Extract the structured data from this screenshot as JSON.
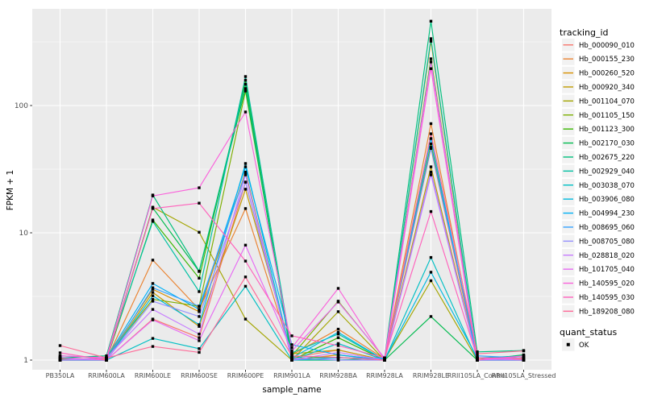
{
  "chart_data": {
    "type": "line",
    "xlabel": "sample_name",
    "ylabel": "FPKM + 1",
    "y_scale": "log10",
    "y_ticks": [
      "1",
      "10",
      "100"
    ],
    "y_tick_values": [
      1,
      10,
      100
    ],
    "y_minor_values": [
      3.162,
      31.62,
      316.2
    ],
    "categories": [
      "PB350LA",
      "RRIM600LA",
      "RRIM600LE",
      "RRIM600SE",
      "RRIM600PE",
      "RRIM901LA",
      "RRIM928BA",
      "RRIM928LA",
      "RRIM928LE",
      "RRII105LA_Control",
      "RRII105LA_Stressed"
    ],
    "panel_bg": "#EBEBEB",
    "grid_color": "#FFFFFF",
    "tick_label_color": "#4D4D4D",
    "marker_color": "#000000",
    "series": [
      {
        "name": "Hb_000090_010",
        "color": "#F8766D",
        "values": [
          1.05,
          1.0,
          2.1,
          1.5,
          25.0,
          1.05,
          1.2,
          1.0,
          46.0,
          1.0,
          1.02
        ]
      },
      {
        "name": "Hb_000155_230",
        "color": "#EA8331",
        "values": [
          1.02,
          1.0,
          6.1,
          2.5,
          15.5,
          1.1,
          1.75,
          1.02,
          72.0,
          1.03,
          1.0
        ]
      },
      {
        "name": "Hb_000260_520",
        "color": "#D89000",
        "values": [
          1.0,
          1.03,
          3.6,
          2.4,
          30.0,
          1.0,
          1.1,
          1.0,
          320.0,
          1.0,
          1.04
        ]
      },
      {
        "name": "Hb_000920_340",
        "color": "#C09B00",
        "values": [
          1.04,
          1.0,
          3.4,
          1.84,
          22.0,
          1.12,
          1.2,
          1.0,
          33.0,
          1.0,
          1.08
        ]
      },
      {
        "name": "Hb_001104_070",
        "color": "#A3A500",
        "values": [
          1.0,
          1.0,
          15.9,
          10.1,
          2.1,
          1.0,
          2.4,
          1.0,
          4.2,
          1.0,
          1.0
        ]
      },
      {
        "name": "Hb_001105_150",
        "color": "#7CAE00",
        "values": [
          1.0,
          1.04,
          3.0,
          2.65,
          130.0,
          1.08,
          2.9,
          1.03,
          50.0,
          1.04,
          1.0
        ]
      },
      {
        "name": "Hb_001123_300",
        "color": "#39B600",
        "values": [
          1.03,
          1.0,
          12.6,
          4.4,
          158.0,
          1.0,
          1.5,
          1.0,
          233.0,
          1.0,
          1.05
        ]
      },
      {
        "name": "Hb_002170_030",
        "color": "#00BB4E",
        "values": [
          1.0,
          1.0,
          15.7,
          4.97,
          136.0,
          1.04,
          1.05,
          1.0,
          2.2,
          1.0,
          1.1
        ]
      },
      {
        "name": "Hb_002675_220",
        "color": "#00BF7D",
        "values": [
          1.04,
          1.08,
          19.8,
          5.0,
          147.0,
          1.0,
          1.0,
          1.04,
          460.0,
          1.16,
          1.19
        ]
      },
      {
        "name": "Hb_002929_040",
        "color": "#00C1A3",
        "values": [
          1.0,
          1.04,
          12.3,
          3.45,
          169.0,
          1.14,
          1.6,
          1.0,
          335.0,
          1.04,
          1.08
        ]
      },
      {
        "name": "Hb_003038_070",
        "color": "#00BFC4",
        "values": [
          1.04,
          1.0,
          1.48,
          1.23,
          3.8,
          1.0,
          1.35,
          1.0,
          6.4,
          1.0,
          1.0
        ]
      },
      {
        "name": "Hb_003906_080",
        "color": "#00BAE0",
        "values": [
          1.0,
          1.0,
          3.2,
          1.9,
          35.0,
          1.04,
          1.65,
          1.0,
          4.9,
          1.04,
          1.04
        ]
      },
      {
        "name": "Hb_004994_230",
        "color": "#00B0F6",
        "values": [
          1.08,
          1.04,
          4.0,
          2.5,
          33.0,
          1.32,
          1.1,
          1.0,
          55.0,
          1.0,
          1.0
        ]
      },
      {
        "name": "Hb_008695_060",
        "color": "#35A2FF",
        "values": [
          1.04,
          1.0,
          3.7,
          2.65,
          29.0,
          1.0,
          1.04,
          1.04,
          47.0,
          1.08,
          1.04
        ]
      },
      {
        "name": "Hb_008705_080",
        "color": "#9590FF",
        "values": [
          1.0,
          1.0,
          2.9,
          2.2,
          25.0,
          1.04,
          1.0,
          1.0,
          30.0,
          1.0,
          1.0
        ]
      },
      {
        "name": "Hb_028818_020",
        "color": "#C77CFF",
        "values": [
          1.0,
          1.04,
          2.5,
          1.6,
          28.5,
          1.0,
          1.15,
          1.0,
          28.5,
          1.0,
          1.04
        ]
      },
      {
        "name": "Hb_101705_040",
        "color": "#E76BF3",
        "values": [
          1.04,
          1.0,
          2.07,
          1.42,
          8.0,
          1.18,
          2.86,
          1.04,
          220.0,
          1.04,
          1.0
        ]
      },
      {
        "name": "Hb_140595_020",
        "color": "#FA62DB",
        "values": [
          1.08,
          1.04,
          19.5,
          22.6,
          89.0,
          1.25,
          3.66,
          1.0,
          195.0,
          1.0,
          1.08
        ]
      },
      {
        "name": "Hb_140595_030",
        "color": "#FF62BC",
        "values": [
          1.14,
          1.0,
          15.5,
          17.1,
          6.0,
          1.55,
          1.3,
          1.04,
          14.7,
          1.04,
          1.04
        ]
      },
      {
        "name": "Hb_189208_080",
        "color": "#FF6A98",
        "values": [
          1.3,
          1.04,
          1.28,
          1.15,
          4.5,
          1.08,
          1.05,
          1.0,
          60.0,
          1.12,
          1.18
        ]
      }
    ],
    "legend": {
      "color_title": "tracking_id",
      "shape_title": "quant_status",
      "shape_items": [
        {
          "label": "OK"
        }
      ],
      "key_bg": "#F2F2F2"
    }
  }
}
